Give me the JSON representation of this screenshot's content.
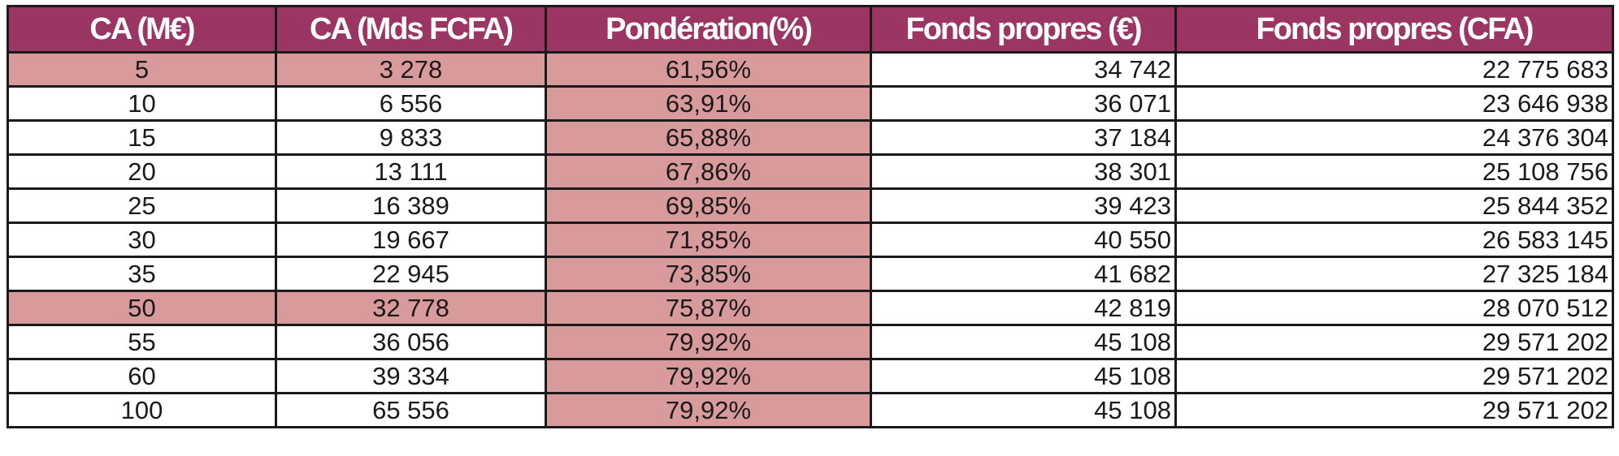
{
  "colors": {
    "header_bg": "#9b3563",
    "header_text": "#ffffff",
    "highlight": "#d89a9a",
    "border": "#1a1a1a"
  },
  "table": {
    "headers": [
      "CA (M€)",
      "CA (Mds FCFA)",
      "Pondération(%)",
      "Fonds propres (€)",
      "Fonds propres (CFA)"
    ],
    "rows": [
      {
        "cells": [
          "5",
          "3 278",
          "61,56%",
          "34 742",
          "22 775 683"
        ],
        "highlighted": true
      },
      {
        "cells": [
          "10",
          "6 556",
          "63,91%",
          "36 071",
          "23 646 938"
        ],
        "highlighted": false
      },
      {
        "cells": [
          "15",
          "9 833",
          "65,88%",
          "37 184",
          "24 376 304"
        ],
        "highlighted": false
      },
      {
        "cells": [
          "20",
          "13 111",
          "67,86%",
          "38 301",
          "25 108 756"
        ],
        "highlighted": false
      },
      {
        "cells": [
          "25",
          "16 389",
          "69,85%",
          "39 423",
          "25 844 352"
        ],
        "highlighted": false
      },
      {
        "cells": [
          "30",
          "19 667",
          "71,85%",
          "40 550",
          "26 583 145"
        ],
        "highlighted": false
      },
      {
        "cells": [
          "35",
          "22 945",
          "73,85%",
          "41 682",
          "27 325 184"
        ],
        "highlighted": false
      },
      {
        "cells": [
          "50",
          "32 778",
          "75,87%",
          "42 819",
          "28 070 512"
        ],
        "highlighted": true
      },
      {
        "cells": [
          "55",
          "36 056",
          "79,92%",
          "45 108",
          "29 571 202"
        ],
        "highlighted": false
      },
      {
        "cells": [
          "60",
          "39 334",
          "79,92%",
          "45 108",
          "29 571 202"
        ],
        "highlighted": false
      },
      {
        "cells": [
          "100",
          "65 556",
          "79,92%",
          "45 108",
          "29 571 202"
        ],
        "highlighted": false
      }
    ]
  }
}
